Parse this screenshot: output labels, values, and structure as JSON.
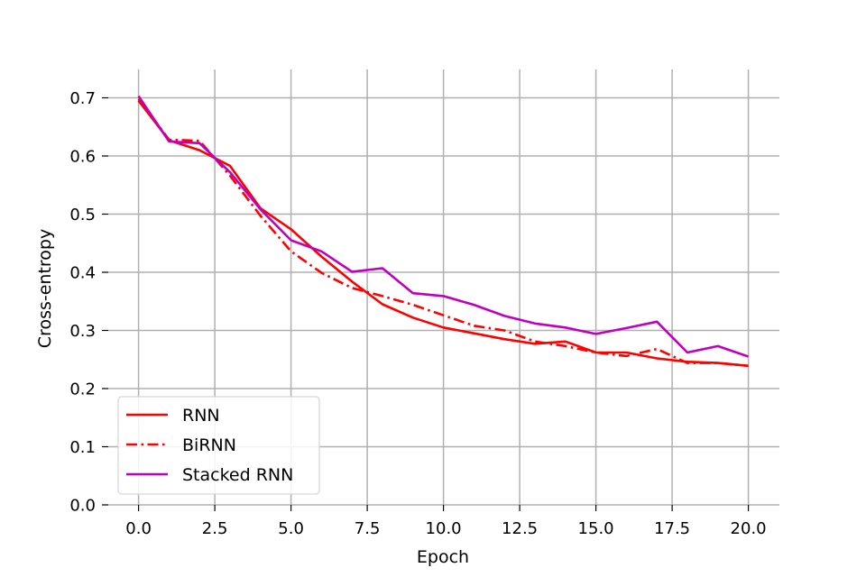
{
  "chart_data": {
    "type": "line",
    "title": "",
    "xlabel": "Epoch",
    "ylabel": "Cross-entropy",
    "xlim": [
      -1,
      21
    ],
    "ylim": [
      0,
      0.75
    ],
    "xticks": [
      "0.0",
      "2.5",
      "5.0",
      "7.5",
      "10.0",
      "12.5",
      "15.0",
      "17.5",
      "20.0"
    ],
    "yticks": [
      "0.0",
      "0.1",
      "0.2",
      "0.3",
      "0.4",
      "0.5",
      "0.6",
      "0.7"
    ],
    "grid": true,
    "legend_position": "lower-left",
    "x": [
      0,
      1,
      2,
      3,
      4,
      5,
      6,
      7,
      8,
      9,
      10,
      11,
      12,
      13,
      14,
      15,
      16,
      17,
      18,
      19,
      20
    ],
    "series": [
      {
        "name": "RNN",
        "color": "#ff0000",
        "style": "solid",
        "values": [
          0.695,
          0.627,
          0.61,
          0.583,
          0.51,
          0.474,
          0.427,
          0.384,
          0.345,
          0.322,
          0.305,
          0.295,
          0.285,
          0.277,
          0.281,
          0.262,
          0.262,
          0.252,
          0.246,
          0.244,
          0.239
        ]
      },
      {
        "name": "BiRNN",
        "color": "#ff0000",
        "style": "dashdot",
        "values": [
          0.698,
          0.628,
          0.626,
          0.566,
          0.497,
          0.436,
          0.399,
          0.373,
          0.359,
          0.344,
          0.326,
          0.308,
          0.3,
          0.281,
          0.273,
          0.262,
          0.256,
          0.268,
          0.244,
          0.244,
          0.239
        ]
      },
      {
        "name": "Stacked RNN",
        "color": "#bf00bf",
        "style": "solid",
        "values": [
          0.703,
          0.625,
          0.622,
          0.572,
          0.508,
          0.455,
          0.436,
          0.401,
          0.407,
          0.364,
          0.359,
          0.344,
          0.325,
          0.312,
          0.305,
          0.294,
          0.304,
          0.315,
          0.262,
          0.273,
          0.255
        ]
      }
    ]
  }
}
